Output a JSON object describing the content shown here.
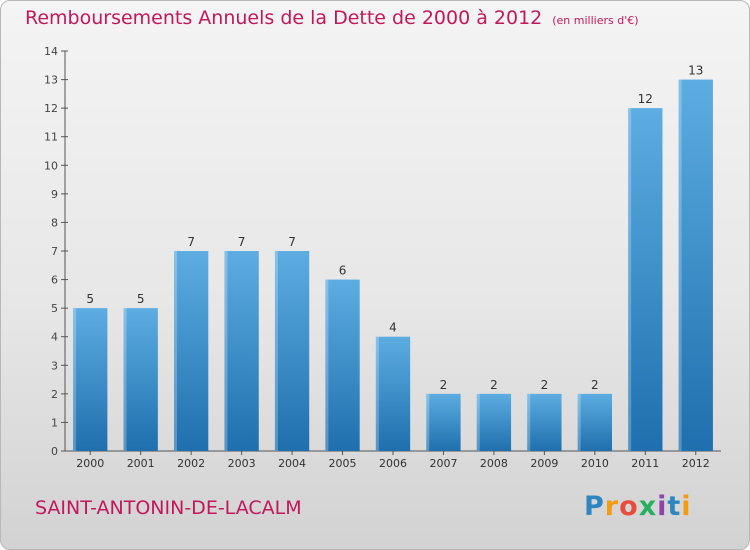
{
  "header": {
    "title": "Remboursements Annuels de la Dette de 2000 à 2012",
    "unit": "(en milliers d'€)"
  },
  "footer": {
    "town": "SAINT-ANTONIN-DE-LACALM",
    "logo_letters": [
      "P",
      "r",
      "o",
      "x",
      "i",
      "t",
      "i"
    ]
  },
  "colors": {
    "accent": "#c2185b",
    "bar_top": "#5dade2",
    "bar_bottom": "#1f6fae"
  },
  "chart_data": {
    "type": "bar",
    "title": "Remboursements Annuels de la Dette de 2000 à 2012",
    "categories": [
      "2000",
      "2001",
      "2002",
      "2003",
      "2004",
      "2005",
      "2006",
      "2007",
      "2008",
      "2009",
      "2010",
      "2011",
      "2012"
    ],
    "values": [
      5,
      5,
      7,
      7,
      7,
      6,
      4,
      2,
      2,
      2,
      2,
      12,
      13
    ],
    "ylim": [
      0,
      14
    ],
    "yticks": [
      "0",
      "1",
      "2",
      "3",
      "4",
      "5",
      "6",
      "7",
      "8",
      "9",
      "10",
      "11",
      "12",
      "13",
      "14"
    ],
    "grid": false,
    "legend": "none"
  }
}
